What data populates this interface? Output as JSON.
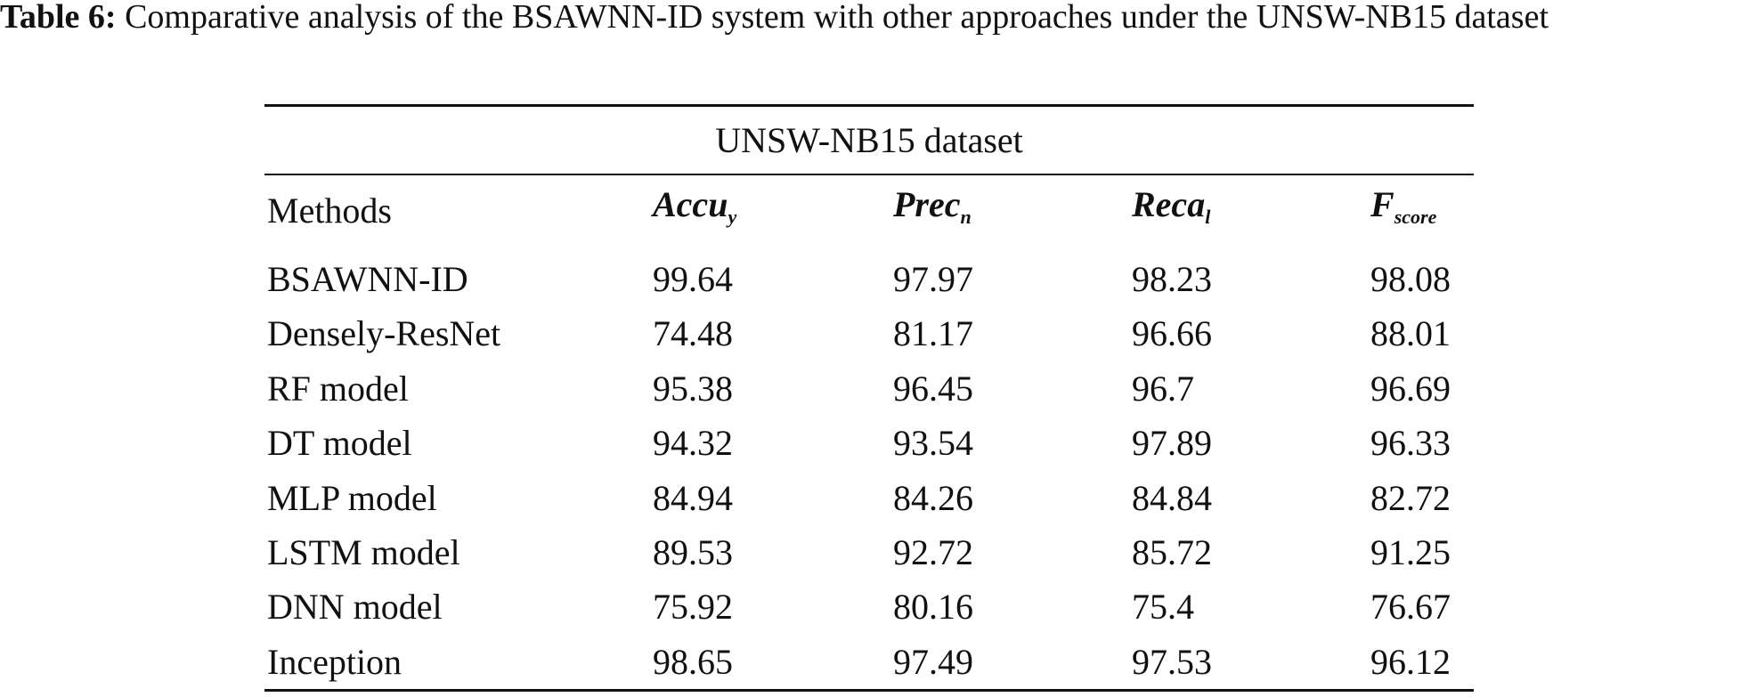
{
  "caption": {
    "label": "Table 6:",
    "text": "Comparative analysis of the BSAWNN-ID system with other approaches under the UNSW-NB15 dataset"
  },
  "table": {
    "group_header": "UNSW-NB15 dataset",
    "columns": [
      {
        "main": "Methods"
      },
      {
        "main": "Accu",
        "sub": "y"
      },
      {
        "main": "Prec",
        "sub": "n"
      },
      {
        "main": "Reca",
        "sub": "l"
      },
      {
        "main": "F",
        "sub": "score"
      }
    ],
    "rows": [
      [
        "BSAWNN-ID",
        "99.64",
        "97.97",
        "98.23",
        "98.08"
      ],
      [
        "Densely-ResNet",
        "74.48",
        "81.17",
        "96.66",
        "88.01"
      ],
      [
        "RF model",
        "95.38",
        "96.45",
        "96.7",
        "96.69"
      ],
      [
        "DT model",
        "94.32",
        "93.54",
        "97.89",
        "96.33"
      ],
      [
        "MLP model",
        "84.94",
        "84.26",
        "84.84",
        "82.72"
      ],
      [
        "LSTM model",
        "89.53",
        "92.72",
        "85.72",
        "91.25"
      ],
      [
        "DNN model",
        "75.92",
        "80.16",
        "75.4",
        "76.67"
      ],
      [
        "Inception",
        "98.65",
        "97.49",
        "97.53",
        "96.12"
      ]
    ]
  }
}
